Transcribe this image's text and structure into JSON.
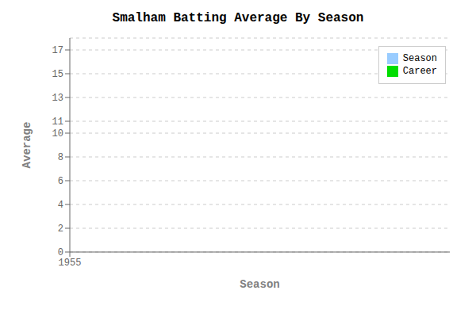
{
  "chart_data": {
    "type": "bar",
    "title": "Smalham Batting Average By Season",
    "xlabel": "Season",
    "ylabel": "Average",
    "x": [],
    "series": [
      {
        "name": "Season",
        "color": "#99CCFF",
        "values": []
      },
      {
        "name": "Career",
        "color": "#00DD00",
        "values": []
      }
    ],
    "xlim": [
      1955,
      1956
    ],
    "ylim": [
      0,
      18
    ],
    "xticks": [
      1955
    ],
    "yticks": [
      0,
      2,
      4,
      6,
      8,
      10,
      11,
      13,
      15,
      17
    ],
    "grid": true,
    "legend": "upper right"
  }
}
